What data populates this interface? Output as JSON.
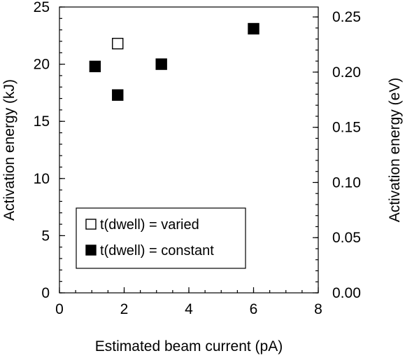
{
  "chart_data": {
    "type": "scatter",
    "title": "",
    "xlabel": "Estimated beam current (pA)",
    "ylabel": "Activation energy (kJ)",
    "y2label": "Activation energy (eV)",
    "xlim": [
      0,
      8
    ],
    "ylim": [
      0,
      25
    ],
    "y2lim": [
      0,
      0.259
    ],
    "x_ticks": [
      "0",
      "2",
      "4",
      "6",
      "8"
    ],
    "x_tick_values": [
      0,
      2,
      4,
      6,
      8
    ],
    "y_ticks": [
      "0",
      "5",
      "10",
      "15",
      "20",
      "25"
    ],
    "y_tick_values": [
      0,
      5,
      10,
      15,
      20,
      25
    ],
    "y2_ticks": [
      "0.00",
      "0.05",
      "0.10",
      "0.15",
      "0.20",
      "0.25"
    ],
    "y2_tick_values": [
      0,
      0.05,
      0.1,
      0.15,
      0.2,
      0.25
    ],
    "grid": false,
    "legend_position": "bottom-left",
    "series": [
      {
        "name": "t(dwell) = varied",
        "marker": "open-square",
        "color": "#000000",
        "points": [
          [
            1.8,
            21.8
          ]
        ]
      },
      {
        "name": "t(dwell) = constant",
        "marker": "filled-square",
        "color": "#000000",
        "points": [
          [
            1.1,
            19.8
          ],
          [
            1.8,
            17.3
          ],
          [
            3.15,
            20.0
          ],
          [
            6.0,
            23.1
          ]
        ]
      }
    ]
  }
}
